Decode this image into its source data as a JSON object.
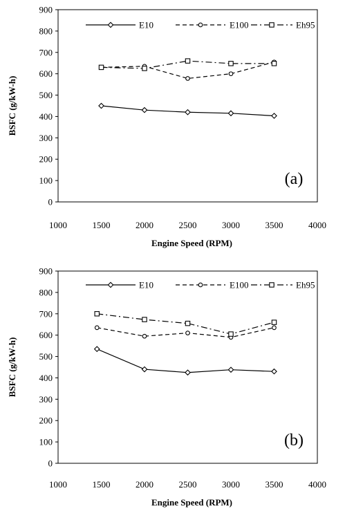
{
  "chart_data": [
    {
      "type": "line",
      "panel_label": "(a)",
      "xlabel": "Engine Speed (RPM)",
      "ylabel": "BSFC (g/kW-h)",
      "xlim": [
        1000,
        4000
      ],
      "ylim": [
        0,
        900
      ],
      "xticks": [
        "1000",
        "1500",
        "2000",
        "2500",
        "3000",
        "3500",
        "4000"
      ],
      "yticks": [
        "0",
        "100",
        "200",
        "300",
        "400",
        "500",
        "600",
        "700",
        "800",
        "900"
      ],
      "grid": false,
      "legend_position": "top",
      "series": [
        {
          "name": "E10",
          "marker": "diamond",
          "dash": "solid",
          "x": [
            1500,
            2000,
            2500,
            3000,
            3500
          ],
          "y": [
            450,
            430,
            420,
            415,
            403
          ]
        },
        {
          "name": "E100",
          "marker": "circle",
          "dash": "dashed",
          "x": [
            1500,
            2000,
            2500,
            3000,
            3500
          ],
          "y": [
            630,
            635,
            578,
            600,
            655
          ]
        },
        {
          "name": "Eh95",
          "marker": "square",
          "dash": "dashdot",
          "x": [
            1500,
            2000,
            2500,
            3000,
            3500
          ],
          "y": [
            630,
            625,
            660,
            648,
            648
          ]
        }
      ]
    },
    {
      "type": "line",
      "panel_label": "(b)",
      "xlabel": "Engine Speed (RPM)",
      "ylabel": "BSFC (g/kW-h)",
      "xlim": [
        1000,
        4000
      ],
      "ylim": [
        0,
        900
      ],
      "xticks": [
        "1000",
        "1500",
        "2000",
        "2500",
        "3000",
        "3500",
        "4000"
      ],
      "yticks": [
        "0",
        "100",
        "200",
        "300",
        "400",
        "500",
        "600",
        "700",
        "800",
        "900"
      ],
      "grid": false,
      "legend_position": "top",
      "series": [
        {
          "name": "E10",
          "marker": "diamond",
          "dash": "solid",
          "x": [
            1450,
            2000,
            2500,
            3000,
            3500
          ],
          "y": [
            535,
            440,
            425,
            438,
            430
          ]
        },
        {
          "name": "E100",
          "marker": "circle",
          "dash": "dashed",
          "x": [
            1450,
            2000,
            2500,
            3000,
            3500
          ],
          "y": [
            635,
            595,
            610,
            590,
            635
          ]
        },
        {
          "name": "Eh95",
          "marker": "square",
          "dash": "dashdot",
          "x": [
            1450,
            2000,
            2500,
            3000,
            3500
          ],
          "y": [
            700,
            673,
            655,
            605,
            660
          ]
        }
      ]
    }
  ]
}
